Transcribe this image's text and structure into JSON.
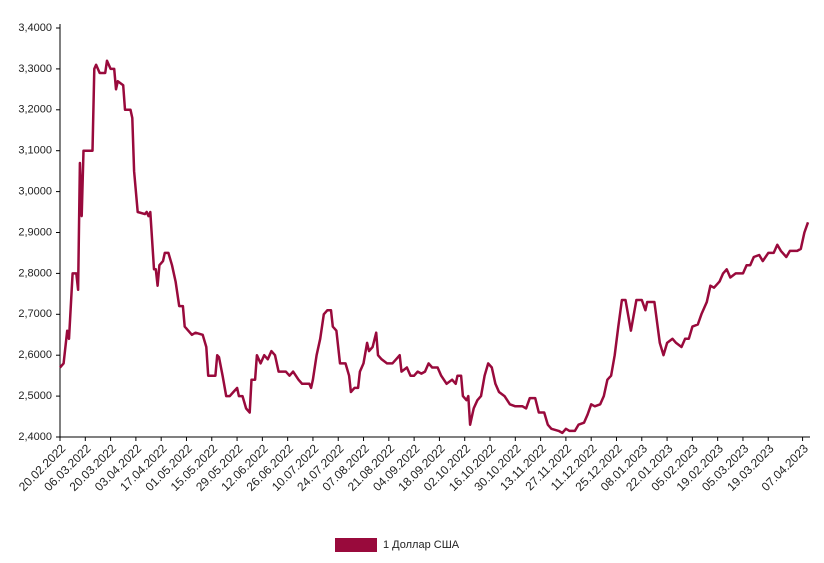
{
  "chart_data": {
    "type": "line",
    "x": [
      "20.02.2022",
      "22.02.2022",
      "24.02.2022",
      "25.02.2022",
      "27.02.2022",
      "01.03.2022",
      "02.03.2022",
      "03.03.2022",
      "04.03.2022",
      "05.03.2022",
      "10.03.2022",
      "11.03.2022",
      "12.03.2022",
      "14.03.2022",
      "17.03.2022",
      "18.03.2022",
      "20.03.2022",
      "22.03.2022",
      "23.03.2022",
      "24.03.2022",
      "27.03.2022",
      "28.03.2022",
      "31.03.2022",
      "01.04.2022",
      "02.04.2022",
      "04.04.2022",
      "08.04.2022",
      "09.04.2022",
      "10.04.2022",
      "11.04.2022",
      "13.04.2022",
      "14.04.2022",
      "15.04.2022",
      "16.04.2022",
      "18.04.2022",
      "19.04.2022",
      "21.04.2022",
      "23.04.2022",
      "25.04.2022",
      "27.04.2022",
      "29.04.2022",
      "30.04.2022",
      "02.05.2022",
      "04.05.2022",
      "06.05.2022",
      "10.05.2022",
      "12.05.2022",
      "13.05.2022",
      "17.05.2022",
      "18.05.2022",
      "19.05.2022",
      "21.05.2022",
      "23.05.2022",
      "25.05.2022",
      "27.05.2022",
      "29.05.2022",
      "30.05.2022",
      "01.06.2022",
      "03.06.2022",
      "05.06.2022",
      "06.06.2022",
      "08.06.2022",
      "09.06.2022",
      "11.06.2022",
      "13.06.2022",
      "15.06.2022",
      "17.06.2022",
      "19.06.2022",
      "21.06.2022",
      "25.06.2022",
      "27.06.2022",
      "29.06.2022",
      "02.07.2022",
      "04.07.2022",
      "08.07.2022",
      "09.07.2022",
      "10.07.2022",
      "12.07.2022",
      "14.07.2022",
      "16.07.2022",
      "18.07.2022",
      "20.07.2022",
      "21.07.2022",
      "23.07.2022",
      "25.07.2022",
      "28.07.2022",
      "30.07.2022",
      "31.07.2022",
      "02.08.2022",
      "04.08.2022",
      "05.08.2022",
      "07.08.2022",
      "09.08.2022",
      "10.08.2022",
      "12.08.2022",
      "14.08.2022",
      "15.08.2022",
      "17.08.2022",
      "20.08.2022",
      "23.08.2022",
      "25.08.2022",
      "27.08.2022",
      "28.08.2022",
      "31.08.2022",
      "02.09.2022",
      "04.09.2022",
      "06.09.2022",
      "08.09.2022",
      "10.09.2022",
      "12.09.2022",
      "14.09.2022",
      "17.09.2022",
      "19.09.2022",
      "22.09.2022",
      "25.09.2022",
      "27.09.2022",
      "28.09.2022",
      "30.09.2022",
      "01.10.2022",
      "03.10.2022",
      "04.10.2022",
      "05.10.2022",
      "07.10.2022",
      "09.10.2022",
      "11.10.2022",
      "13.10.2022",
      "15.10.2022",
      "17.10.2022",
      "19.10.2022",
      "21.10.2022",
      "24.10.2022",
      "27.10.2022",
      "30.10.2022",
      "03.11.2022",
      "05.11.2022",
      "07.11.2022",
      "10.11.2022",
      "12.11.2022",
      "15.11.2022",
      "17.11.2022",
      "19.11.2022",
      "23.11.2022",
      "25.11.2022",
      "27.11.2022",
      "29.11.2022",
      "02.12.2022",
      "04.12.2022",
      "07.12.2022",
      "09.12.2022",
      "11.12.2022",
      "13.12.2022",
      "16.12.2022",
      "18.12.2022",
      "20.12.2022",
      "22.12.2022",
      "24.12.2022",
      "26.12.2022",
      "28.12.2022",
      "30.12.2022",
      "02.01.2023",
      "05.01.2023",
      "08.01.2023",
      "10.01.2023",
      "11.01.2023",
      "15.01.2023",
      "18.01.2023",
      "20.01.2023",
      "22.01.2023",
      "25.01.2023",
      "27.01.2023",
      "30.01.2023",
      "01.02.2023",
      "03.02.2023",
      "05.02.2023",
      "08.02.2023",
      "10.02.2023",
      "13.02.2023",
      "15.02.2023",
      "17.02.2023",
      "20.02.2023",
      "22.02.2023",
      "24.02.2023",
      "26.02.2023",
      "01.03.2023",
      "05.03.2023",
      "07.03.2023",
      "09.03.2023",
      "11.03.2023",
      "14.03.2023",
      "16.03.2023",
      "19.03.2023",
      "22.03.2023",
      "24.03.2023",
      "26.03.2023",
      "29.03.2023",
      "31.03.2023",
      "04.04.2023",
      "06.04.2023",
      "08.04.2023",
      "10.04.2023"
    ],
    "series": [
      {
        "name": "1 Доллар США",
        "color": "#990a3c",
        "values": [
          2.57,
          2.58,
          2.66,
          2.64,
          2.8,
          2.8,
          2.76,
          3.07,
          2.94,
          3.1,
          3.1,
          3.3,
          3.31,
          3.29,
          3.29,
          3.32,
          3.3,
          3.3,
          3.25,
          3.27,
          3.26,
          3.2,
          3.2,
          3.18,
          3.05,
          2.95,
          2.945,
          2.95,
          2.94,
          2.95,
          2.81,
          2.81,
          2.77,
          2.82,
          2.83,
          2.85,
          2.85,
          2.82,
          2.78,
          2.72,
          2.72,
          2.67,
          2.66,
          2.65,
          2.655,
          2.65,
          2.62,
          2.55,
          2.55,
          2.6,
          2.595,
          2.55,
          2.5,
          2.5,
          2.51,
          2.52,
          2.5,
          2.5,
          2.47,
          2.46,
          2.54,
          2.54,
          2.6,
          2.58,
          2.6,
          2.59,
          2.61,
          2.6,
          2.56,
          2.56,
          2.55,
          2.56,
          2.54,
          2.53,
          2.53,
          2.52,
          2.54,
          2.6,
          2.64,
          2.7,
          2.71,
          2.71,
          2.67,
          2.66,
          2.58,
          2.58,
          2.55,
          2.51,
          2.52,
          2.52,
          2.56,
          2.58,
          2.63,
          2.61,
          2.62,
          2.655,
          2.6,
          2.59,
          2.58,
          2.58,
          2.59,
          2.6,
          2.56,
          2.57,
          2.55,
          2.55,
          2.56,
          2.555,
          2.56,
          2.58,
          2.57,
          2.57,
          2.55,
          2.53,
          2.54,
          2.53,
          2.55,
          2.55,
          2.5,
          2.49,
          2.5,
          2.43,
          2.47,
          2.49,
          2.5,
          2.55,
          2.58,
          2.57,
          2.53,
          2.51,
          2.5,
          2.48,
          2.475,
          2.475,
          2.47,
          2.495,
          2.495,
          2.46,
          2.46,
          2.43,
          2.42,
          2.415,
          2.41,
          2.42,
          2.415,
          2.415,
          2.43,
          2.435,
          2.455,
          2.48,
          2.475,
          2.48,
          2.5,
          2.54,
          2.55,
          2.6,
          2.67,
          2.735,
          2.735,
          2.66,
          2.735,
          2.735,
          2.71,
          2.73,
          2.73,
          2.63,
          2.6,
          2.63,
          2.64,
          2.63,
          2.62,
          2.64,
          2.64,
          2.67,
          2.675,
          2.7,
          2.73,
          2.77,
          2.765,
          2.78,
          2.8,
          2.81,
          2.79,
          2.8,
          2.8,
          2.82,
          2.82,
          2.84,
          2.845,
          2.83,
          2.85,
          2.85,
          2.87,
          2.855,
          2.84,
          2.855,
          2.855,
          2.86,
          2.9,
          2.925
        ]
      }
    ],
    "xlim": [
      "20.02.2022",
      "10.04.2023"
    ],
    "xticks": [
      "20.02.2022",
      "06.03.2022",
      "20.03.2022",
      "03.04.2022",
      "17.04.2022",
      "01.05.2022",
      "15.05.2022",
      "29.05.2022",
      "12.06.2022",
      "26.06.2022",
      "10.07.2022",
      "24.07.2022",
      "07.08.2022",
      "21.08.2022",
      "04.09.2022",
      "18.09.2022",
      "02.10.2022",
      "16.10.2022",
      "30.10.2022",
      "13.11.2022",
      "27.11.2022",
      "11.12.2022",
      "25.12.2022",
      "08.01.2023",
      "22.01.2023",
      "05.02.2023",
      "19.02.2023",
      "05.03.2023",
      "19.03.2023",
      "07.04.2023"
    ],
    "ylim": [
      2.4,
      3.4
    ],
    "yticks": [
      {
        "value": 2.4,
        "label": "2,4000"
      },
      {
        "value": 2.5,
        "label": "2,5000"
      },
      {
        "value": 2.6,
        "label": "2,6000"
      },
      {
        "value": 2.7,
        "label": "2,7000"
      },
      {
        "value": 2.8,
        "label": "2,8000"
      },
      {
        "value": 2.9,
        "label": "2,9000"
      },
      {
        "value": 3.0,
        "label": "3,0000"
      },
      {
        "value": 3.1,
        "label": "3,1000"
      },
      {
        "value": 3.2,
        "label": "3,2000"
      },
      {
        "value": 3.3,
        "label": "3,3000"
      },
      {
        "value": 3.4,
        "label": "3,4000"
      }
    ],
    "grid": false,
    "legend": "bottom"
  }
}
